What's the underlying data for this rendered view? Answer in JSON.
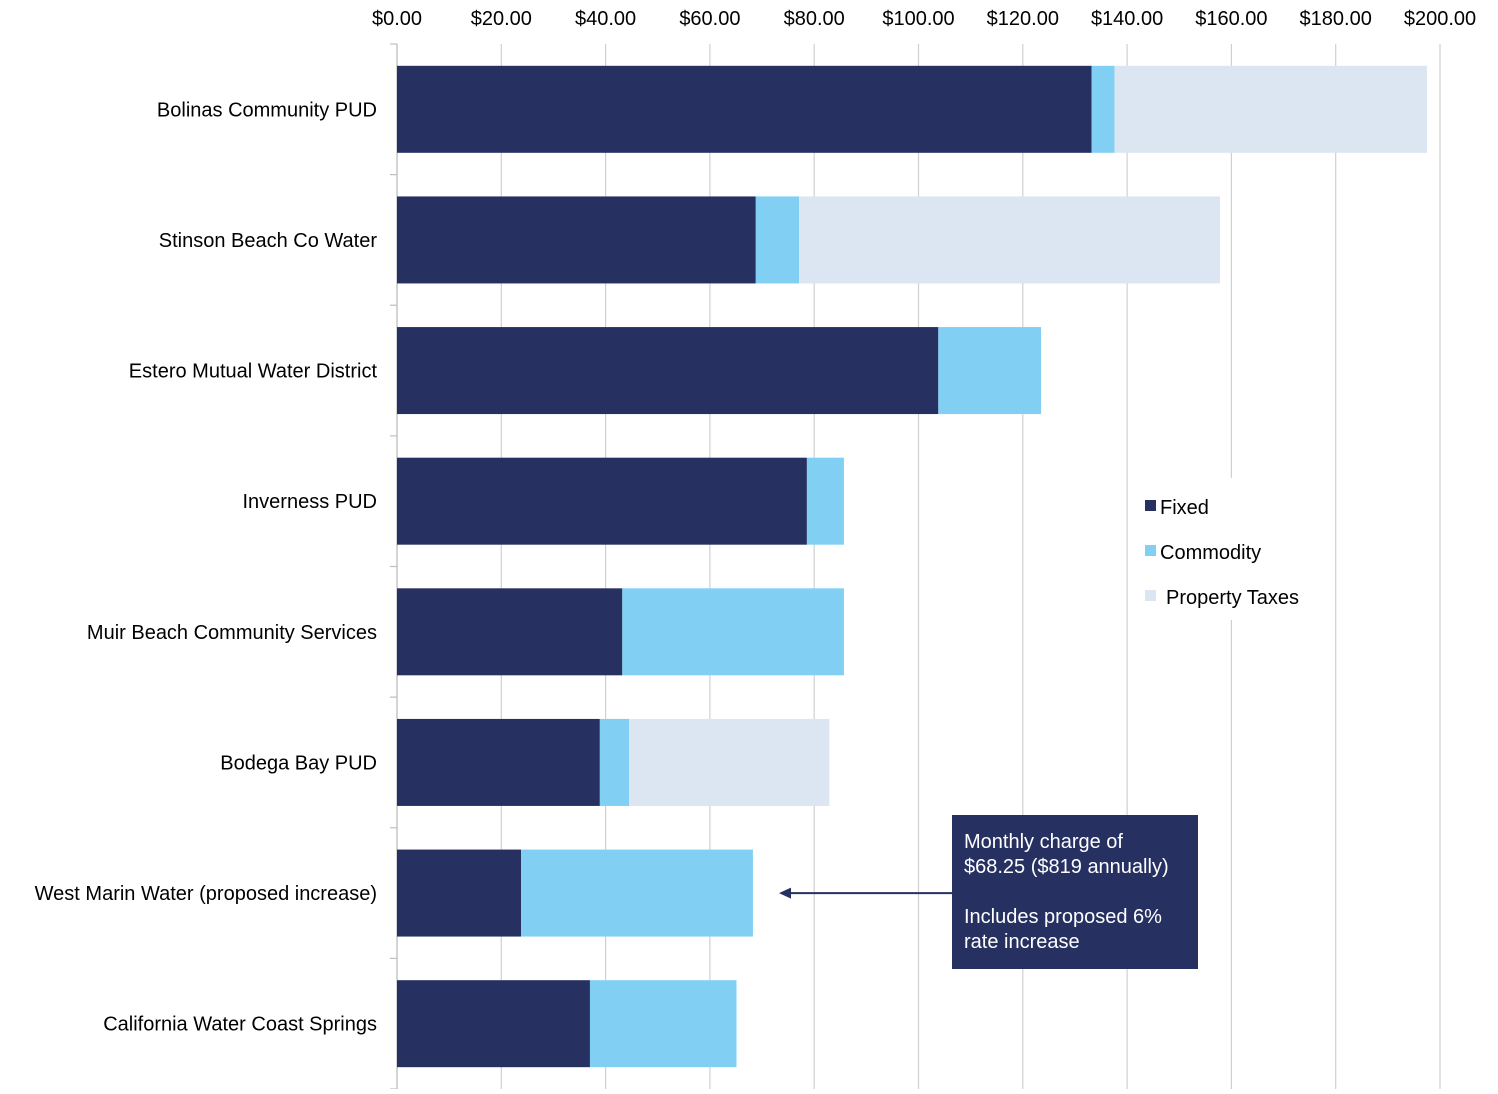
{
  "chart_data": {
    "type": "bar",
    "orientation": "horizontal",
    "stacked": true,
    "title": "",
    "xlabel": "",
    "ylabel": "",
    "xlim": [
      0,
      200
    ],
    "x_ticks": [
      0,
      20,
      40,
      60,
      80,
      100,
      120,
      140,
      160,
      180,
      200
    ],
    "x_tick_labels": [
      "$0.00",
      "$20.00",
      "$40.00",
      "$60.00",
      "$80.00",
      "$100.00",
      "$120.00",
      "$140.00",
      "$160.00",
      "$180.00",
      "$200.00"
    ],
    "x_axis_position": "top",
    "grid": "vertical",
    "legend_position": "right",
    "categories": [
      "Bolinas Community PUD",
      "Stinson Beach Co Water",
      "Estero Mutual Water District",
      "Inverness PUD",
      "Muir Beach Community Services",
      "Bodega Bay PUD",
      "West Marin Water (proposed increase)",
      "California Water Coast Springs"
    ],
    "series": [
      {
        "name": "Fixed",
        "color": "#263162",
        "values": [
          133.2,
          68.8,
          103.8,
          78.6,
          43.2,
          38.9,
          23.8,
          37.0
        ]
      },
      {
        "name": "Commodity",
        "color": "#82cff4",
        "values": [
          4.4,
          8.3,
          19.7,
          7.1,
          42.5,
          5.6,
          44.45,
          28.1
        ]
      },
      {
        "name": "Property Taxes",
        "color": "#dce5f2",
        "values": [
          59.9,
          80.7,
          0,
          0,
          0,
          38.4,
          0,
          0
        ]
      }
    ],
    "annotation": {
      "target_category": "West Marin Water (proposed increase)",
      "lines": [
        "Monthly charge of",
        "$68.25 ($819 annually)",
        "",
        "Includes proposed 6%",
        "rate increase"
      ],
      "box_color": "#263162",
      "text_color": "#ffffff"
    }
  }
}
